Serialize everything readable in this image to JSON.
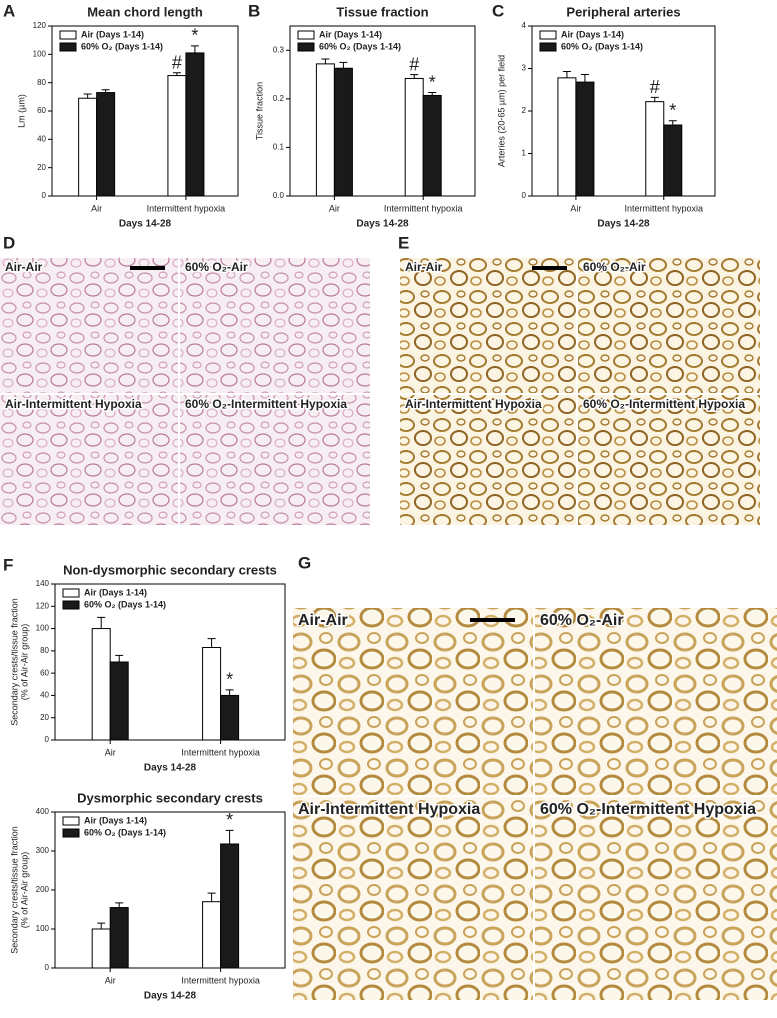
{
  "chart_data": [
    {
      "type": "bar",
      "letter": "A",
      "title": "Mean chord length",
      "ylabel": [
        "Lm (µm)"
      ],
      "xlabel": "Days 14-28",
      "categories": [
        "Air",
        "Intermittent hypoxia"
      ],
      "series": [
        {
          "name": "Air (Days 1-14)",
          "color": "#ffffff",
          "values": [
            69,
            85
          ],
          "errors": [
            3,
            2
          ],
          "markers": [
            null,
            "#"
          ]
        },
        {
          "name": "60% O₂ (Days 1-14)",
          "color": "#1a1a1a",
          "values": [
            73,
            101
          ],
          "errors": [
            2,
            5
          ],
          "markers": [
            null,
            "*"
          ]
        }
      ],
      "ylim": [
        0,
        120
      ],
      "yticks": [
        0,
        20,
        40,
        60,
        80,
        100,
        120
      ],
      "legend": "upper-left"
    },
    {
      "type": "bar",
      "letter": "B",
      "title": "Tissue fraction",
      "ylabel": [
        "Tissue fraction"
      ],
      "xlabel": "Days 14-28",
      "categories": [
        "Air",
        "Intermittent hypoxia"
      ],
      "series": [
        {
          "name": "Air (Days 1-14)",
          "color": "#ffffff",
          "values": [
            0.272,
            0.242
          ],
          "errors": [
            0.01,
            0.008
          ],
          "markers": [
            null,
            "#"
          ]
        },
        {
          "name": "60% O₂ (Days 1-14)",
          "color": "#1a1a1a",
          "values": [
            0.263,
            0.207
          ],
          "errors": [
            0.012,
            0.006
          ],
          "markers": [
            null,
            "*"
          ]
        }
      ],
      "ylim": [
        0,
        0.35
      ],
      "yticks": [
        {
          "value": 0,
          "label": "0.0"
        },
        0.1,
        0.2,
        0.3
      ],
      "legend": "upper-left"
    },
    {
      "type": "bar",
      "letter": "C",
      "title": "Peripheral arteries",
      "ylabel": [
        "Arteries (20-65 µm) per field"
      ],
      "xlabel": "Days 14-28",
      "categories": [
        "Air",
        "Intermittent hypoxia"
      ],
      "series": [
        {
          "name": "Air (Days 1-14)",
          "color": "#ffffff",
          "values": [
            2.78,
            2.22
          ],
          "errors": [
            0.15,
            0.1
          ],
          "markers": [
            null,
            "#"
          ]
        },
        {
          "name": "60% O₂ (Days 1-14)",
          "color": "#1a1a1a",
          "values": [
            2.68,
            1.67
          ],
          "errors": [
            0.18,
            0.1
          ],
          "markers": [
            null,
            "*"
          ]
        }
      ],
      "ylim": [
        0,
        4
      ],
      "yticks": [
        0,
        1,
        2,
        3,
        4
      ],
      "legend": "upper-left"
    },
    {
      "type": "bar",
      "letter": "F",
      "title": "Non-dysmorphic secondary crests",
      "ylabel": [
        "Secondary crests/tissue fraction",
        "(% of Air-Air group)"
      ],
      "xlabel": "Days 14-28",
      "categories": [
        "Air",
        "Intermittent hypoxia"
      ],
      "series": [
        {
          "name": "Air (Days 1-14)",
          "color": "#ffffff",
          "values": [
            100,
            83
          ],
          "errors": [
            10,
            8
          ],
          "markers": [
            null,
            null
          ]
        },
        {
          "name": "60% O₂ (Days 1-14)",
          "color": "#1a1a1a",
          "values": [
            70,
            40
          ],
          "errors": [
            6,
            5
          ],
          "markers": [
            null,
            "*"
          ]
        }
      ],
      "ylim": [
        0,
        140
      ],
      "yticks": [
        0,
        20,
        40,
        60,
        80,
        100,
        120,
        140
      ],
      "legend": "upper-left"
    },
    {
      "type": "bar",
      "title": "Dysmorphic secondary crests",
      "ylabel": [
        "Secondary crests/tissue fraction",
        "(% of Air-Air group)"
      ],
      "xlabel": "Days 14-28",
      "categories": [
        "Air",
        "Intermittent hypoxia"
      ],
      "series": [
        {
          "name": "Air (Days 1-14)",
          "color": "#ffffff",
          "values": [
            100,
            170
          ],
          "errors": [
            15,
            22
          ],
          "markers": [
            null,
            null
          ]
        },
        {
          "name": "60% O₂ (Days 1-14)",
          "color": "#1a1a1a",
          "values": [
            155,
            318
          ],
          "errors": [
            12,
            35
          ],
          "markers": [
            null,
            "*"
          ]
        }
      ],
      "ylim": [
        0,
        400
      ],
      "yticks": [
        0,
        100,
        200,
        300,
        400
      ],
      "legend": "upper-left"
    }
  ],
  "micrographs": [
    {
      "letter": "D",
      "labels": [
        "Air-Air",
        "60% O₂-Air",
        "Air-Intermittent Hypoxia",
        "60% O₂-Intermittent Hypoxia"
      ]
    },
    {
      "letter": "E",
      "labels": [
        "Air-Air",
        "60% O₂-Air",
        "Air-Intermittent Hypoxia",
        "60% O₂-Intermittent Hypoxia"
      ]
    },
    {
      "letter": "G",
      "labels": [
        "Air-Air",
        "60% O₂-Air",
        "Air-Intermittent Hypoxia",
        "60% O₂-Intermittent Hypoxia"
      ]
    }
  ]
}
